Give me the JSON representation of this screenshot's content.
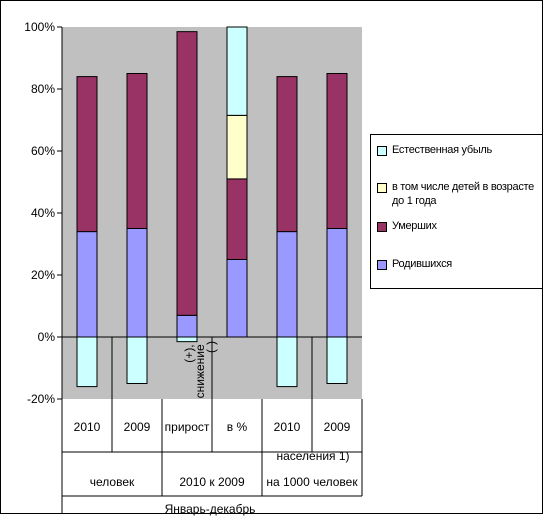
{
  "chart_data": {
    "type": "bar",
    "stacked": true,
    "categories": [
      "2010",
      "2009",
      "прирост",
      "в %",
      "2010",
      "2009"
    ],
    "groups": [
      {
        "label": "человек",
        "span": [
          0,
          1
        ]
      },
      {
        "label": "2010 к 2009",
        "span": [
          2,
          3
        ]
      },
      {
        "label": "на 1000 человек",
        "span": [
          4,
          5
        ]
      }
    ],
    "extra_labels": {
      "vertical": "(+), снижение (-)",
      "population": "населения 1)",
      "bottom": "Январь-декабрь"
    },
    "series": [
      {
        "name": "Родившихся",
        "color": "#9999ff",
        "values": [
          34,
          35,
          7,
          25,
          34,
          35
        ]
      },
      {
        "name": "Умерших",
        "color": "#993366",
        "values": [
          50,
          50,
          91.5,
          26,
          50,
          50
        ]
      },
      {
        "name": "в том числе детей в возрасте до 1 года",
        "color": "#ffffcc",
        "values": [
          0,
          0,
          0,
          20.5,
          0,
          0
        ]
      },
      {
        "name": "Естественная убыль",
        "color": "#ccffff",
        "values": [
          -16,
          -15,
          -1.5,
          28.5,
          -16,
          -15
        ]
      }
    ],
    "ylim": [
      -20,
      100
    ],
    "yticks": [
      -20,
      0,
      20,
      40,
      60,
      80,
      100
    ],
    "ytick_labels": [
      "-20%",
      "0%",
      "20%",
      "40%",
      "60%",
      "80%",
      "100%"
    ],
    "grid": false,
    "legend_position": "right",
    "plot_background": "#c0c0c0"
  }
}
